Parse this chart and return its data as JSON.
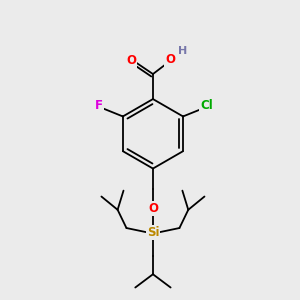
{
  "bg_color": "#ebebeb",
  "atom_colors": {
    "O": "#ff0000",
    "F": "#dd00dd",
    "Cl": "#00aa00",
    "Si": "#bb8800",
    "C": "#000000",
    "H": "#7777aa"
  },
  "bond_color": "#000000"
}
